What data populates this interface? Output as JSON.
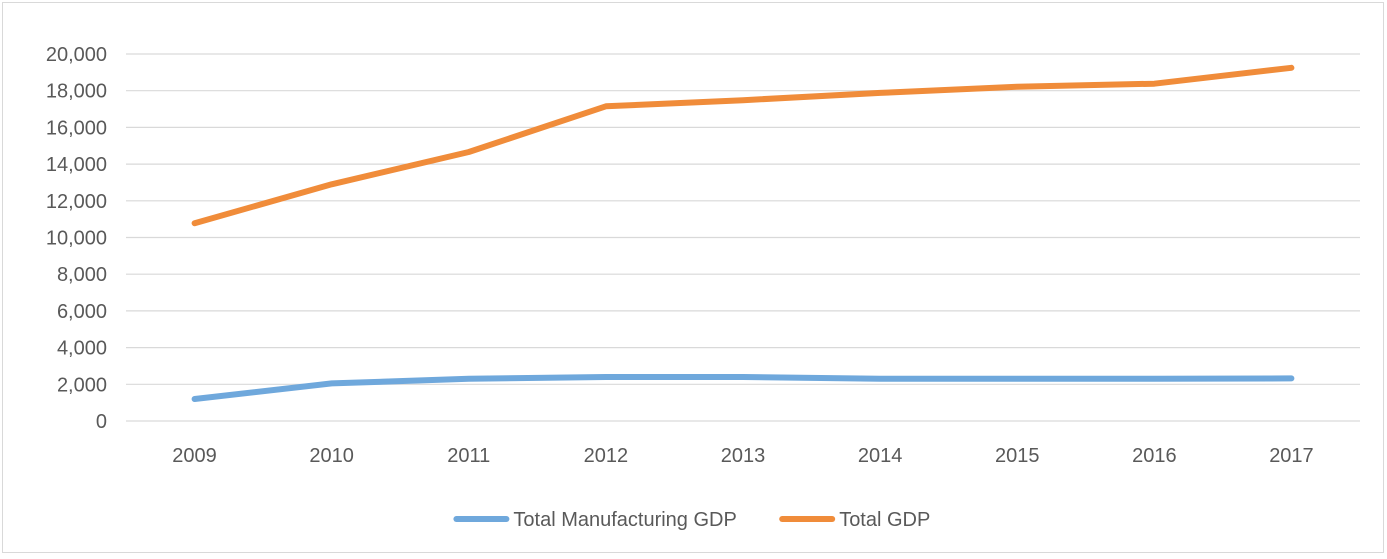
{
  "chart_data": {
    "type": "line",
    "title": "",
    "xlabel": "",
    "ylabel": "",
    "categories": [
      "2009",
      "2010",
      "2011",
      "2012",
      "2013",
      "2014",
      "2015",
      "2016",
      "2017"
    ],
    "ylim": [
      0,
      20000
    ],
    "yticks": [
      0,
      2000,
      4000,
      6000,
      8000,
      10000,
      12000,
      14000,
      16000,
      18000,
      20000
    ],
    "ytick_labels": [
      "0",
      "2,000",
      "4,000",
      "6,000",
      "8,000",
      "10,000",
      "12,000",
      "14,000",
      "16,000",
      "18,000",
      "20,000"
    ],
    "grid": true,
    "legend_position": "bottom",
    "series": [
      {
        "name": "Total Manufacturing GDP",
        "color": "#6fa8dc",
        "values": [
          1200,
          2050,
          2300,
          2400,
          2400,
          2300,
          2300,
          2300,
          2320
        ]
      },
      {
        "name": "Total GDP",
        "color": "#f08c3a",
        "values": [
          10780,
          12900,
          14660,
          17150,
          17480,
          17880,
          18220,
          18380,
          19250
        ]
      }
    ],
    "gridline_color": "#d9d9d9"
  }
}
